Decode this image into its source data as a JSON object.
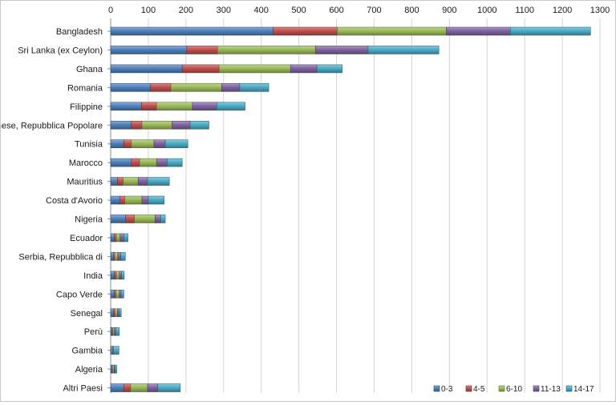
{
  "chart_data": {
    "type": "bar",
    "orientation": "horizontal",
    "stacked": true,
    "title": "",
    "xlabel": "",
    "ylabel": "",
    "xlim": [
      0,
      1300
    ],
    "ticks": [
      0,
      100,
      200,
      300,
      400,
      500,
      600,
      700,
      800,
      900,
      1000,
      1100,
      1200,
      1300
    ],
    "grid": "vertical",
    "legend_position": "bottom-right",
    "categories": [
      "Bangladesh",
      "Sri Lanka (ex Ceylon)",
      "Ghana",
      "Romania",
      "Filippine",
      "Cinese, Repubblica Popolare",
      "Tunisia",
      "Marocco",
      "Mauritius",
      "Costa d'Avorio",
      "Nigeria",
      "Ecuador",
      "Serbia, Repubblica di",
      "India",
      "Capo Verde",
      "Senegal",
      "Perù",
      "Gambia",
      "Algeria",
      "Altri Paesi"
    ],
    "series": [
      {
        "name": "0-3",
        "color": "#4f81bd",
        "values": [
          432,
          202,
          190,
          105,
          82,
          55,
          35,
          55,
          18,
          25,
          40,
          10,
          8,
          10,
          10,
          8,
          3,
          2,
          3,
          35
        ]
      },
      {
        "name": "4-5",
        "color": "#c0504d",
        "values": [
          170,
          82,
          98,
          55,
          40,
          28,
          20,
          22,
          15,
          13,
          23,
          5,
          3,
          5,
          4,
          4,
          3,
          0,
          2,
          18
        ]
      },
      {
        "name": "6-10",
        "color": "#9bbb59",
        "values": [
          290,
          260,
          190,
          135,
          95,
          80,
          60,
          45,
          40,
          45,
          55,
          10,
          8,
          8,
          9,
          6,
          4,
          3,
          4,
          45
        ]
      },
      {
        "name": "11-13",
        "color": "#8064a2",
        "values": [
          170,
          140,
          70,
          48,
          65,
          48,
          30,
          28,
          25,
          17,
          15,
          10,
          8,
          6,
          5,
          5,
          4,
          2,
          3,
          27
        ]
      },
      {
        "name": "14-17",
        "color": "#4bacc6",
        "values": [
          213,
          188,
          67,
          77,
          75,
          50,
          60,
          40,
          58,
          42,
          12,
          11,
          12,
          7,
          7,
          5,
          9,
          15,
          4,
          60
        ]
      }
    ]
  }
}
